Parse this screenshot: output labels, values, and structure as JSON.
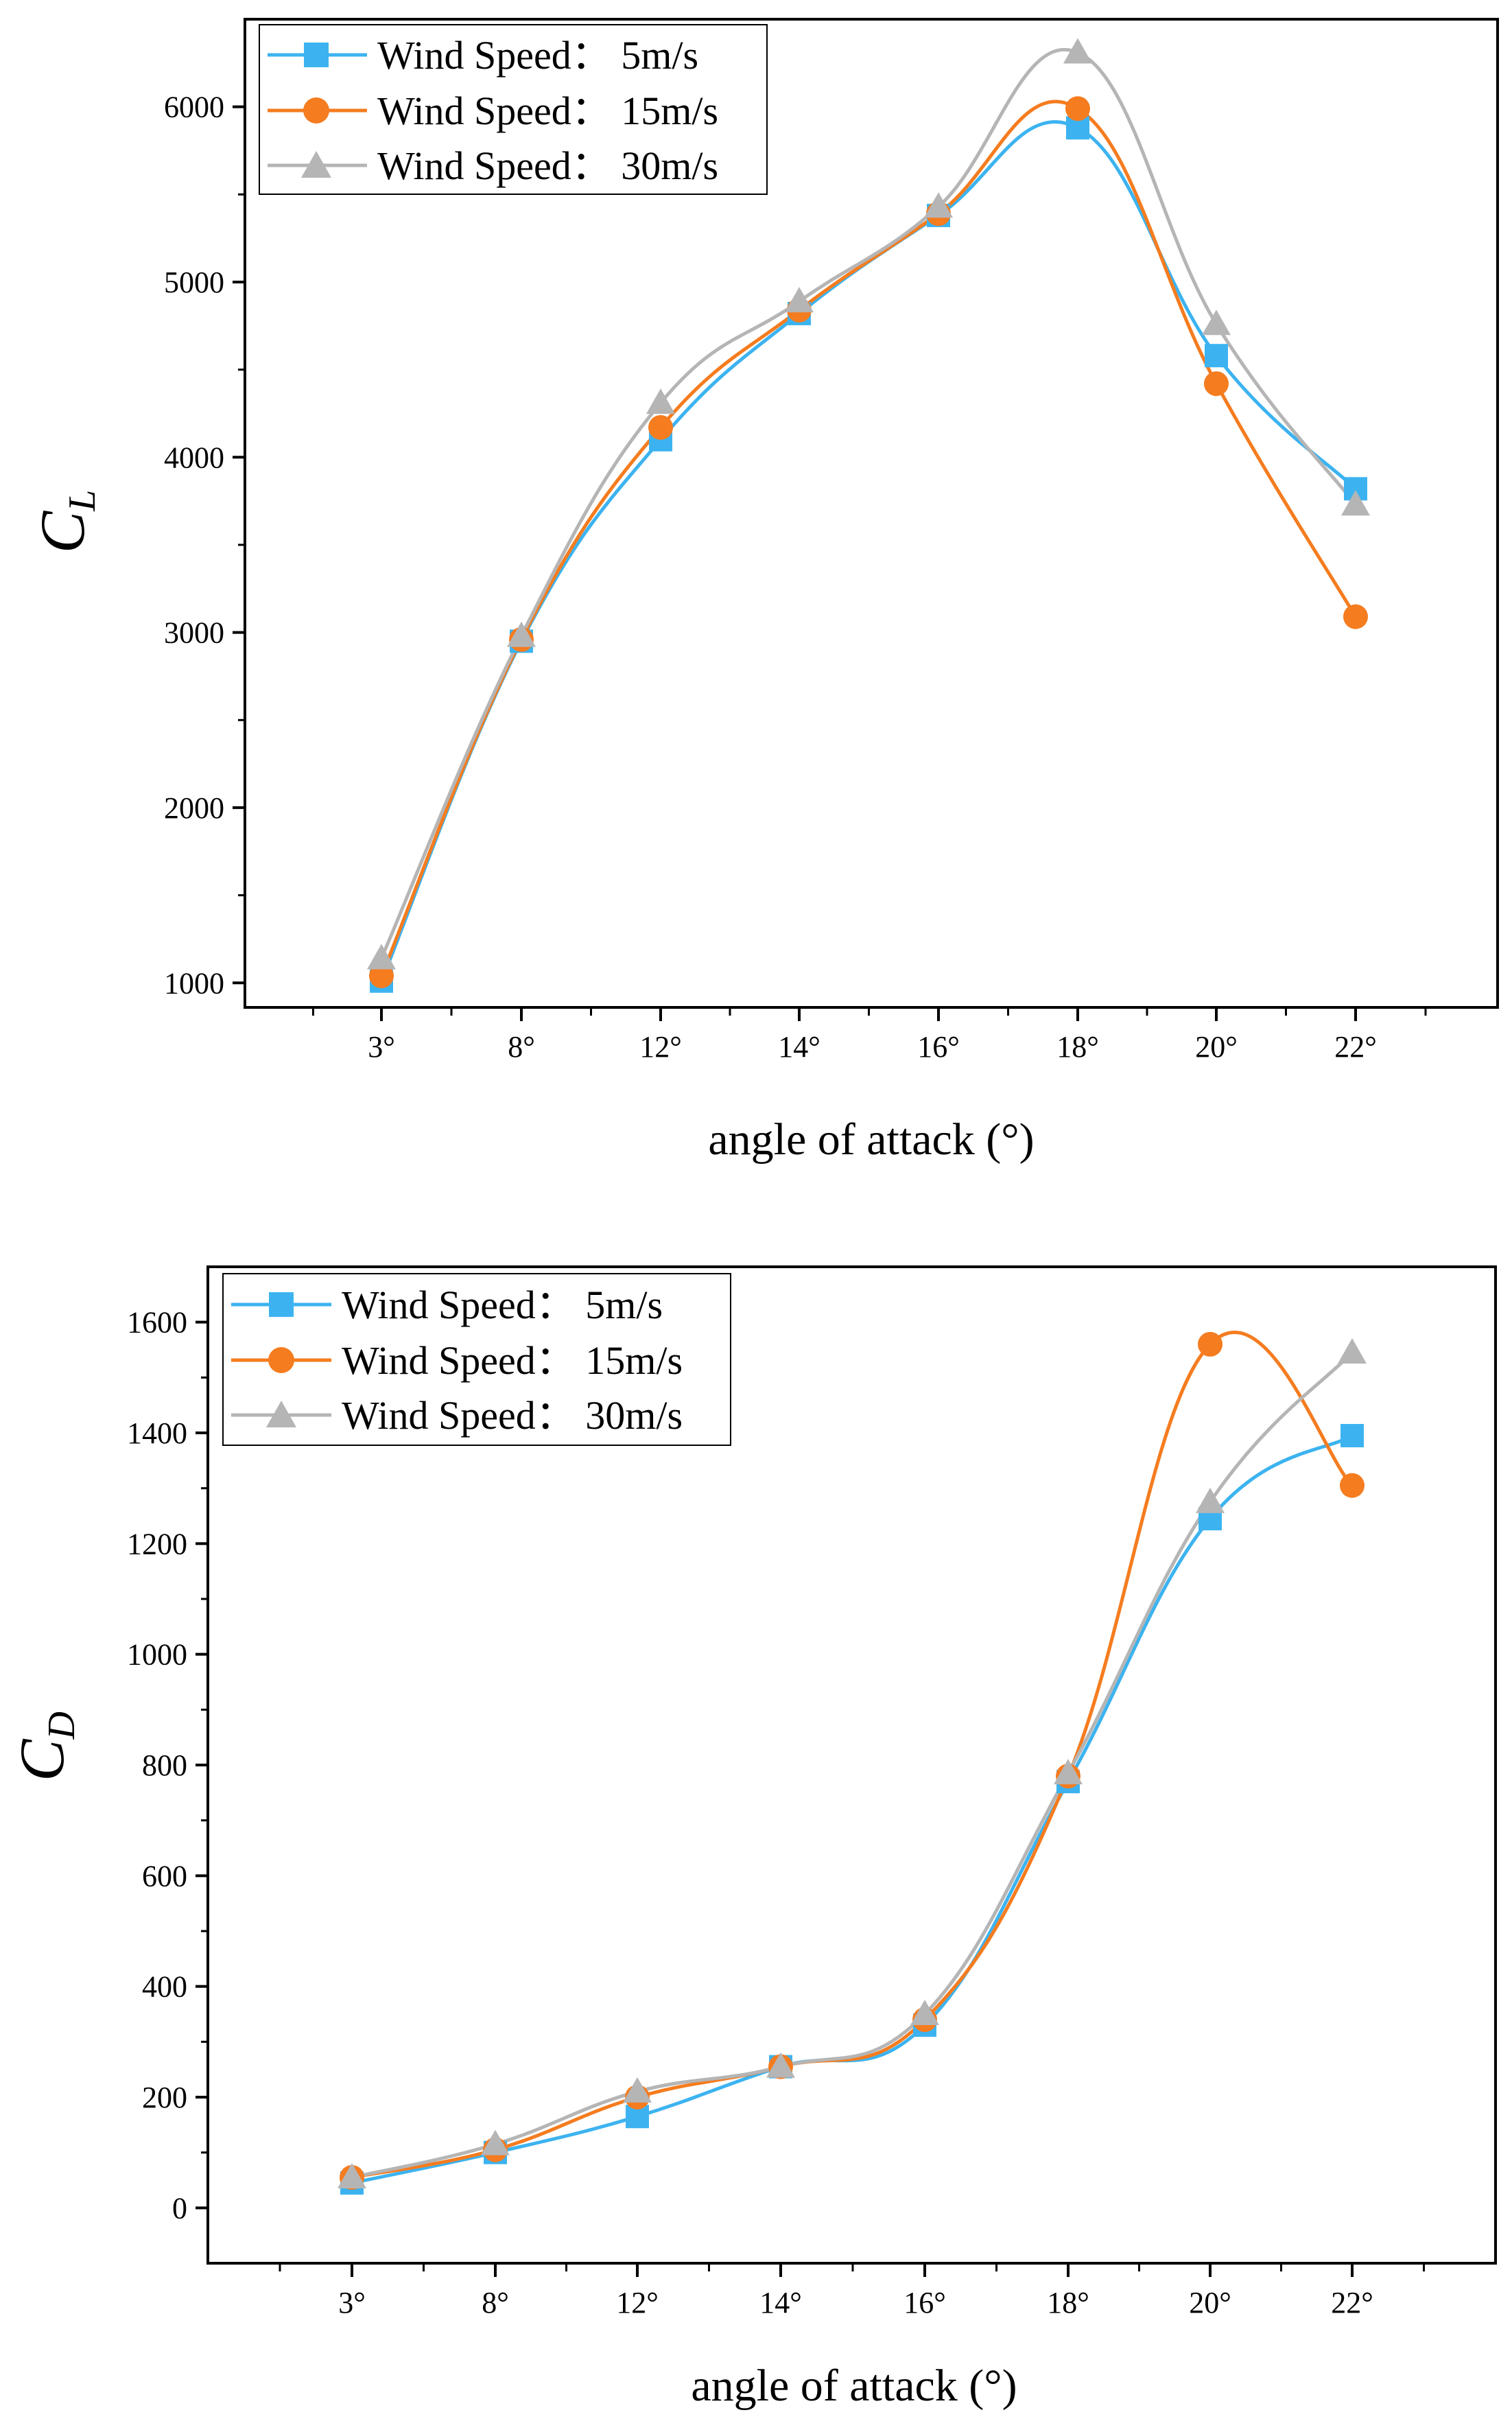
{
  "chart_data": [
    {
      "type": "line",
      "xlabel": "angle of attack (°)",
      "ylabel": {
        "main": "C",
        "sub": "L"
      },
      "categories": [
        "3°",
        "8°",
        "12°",
        "14°",
        "16°",
        "18°",
        "20°",
        "22°"
      ],
      "ylim": [
        860,
        6500
      ],
      "yticks": [
        1000,
        2000,
        3000,
        4000,
        5000,
        6000
      ],
      "grid": false,
      "legend_position": "top-left",
      "series": [
        {
          "name": "Wind Speed：  5m/s",
          "color": "#3cb3f0",
          "marker": "square",
          "values": [
            1010,
            2950,
            4100,
            4820,
            5380,
            5880,
            4580,
            3820
          ]
        },
        {
          "name": "Wind Speed：  15m/s",
          "color": "#f57c1f",
          "marker": "circle",
          "values": [
            1040,
            2960,
            4170,
            4840,
            5390,
            5990,
            4420,
            3090
          ]
        },
        {
          "name": "Wind Speed：  30m/s",
          "color": "#b5b5b5",
          "marker": "triangle",
          "values": [
            1140,
            2980,
            4310,
            4890,
            5430,
            6310,
            4760,
            3730
          ]
        }
      ]
    },
    {
      "type": "line",
      "xlabel": "angle of attack (°)",
      "ylabel": {
        "main": "C",
        "sub": "D"
      },
      "categories": [
        "3°",
        "8°",
        "12°",
        "14°",
        "16°",
        "18°",
        "20°",
        "22°"
      ],
      "ylim": [
        -100,
        1700
      ],
      "yticks": [
        0,
        200,
        400,
        600,
        800,
        1000,
        1200,
        1400,
        1600
      ],
      "grid": false,
      "legend_position": "top-left",
      "series": [
        {
          "name": "Wind Speed：  5m/s",
          "color": "#3cb3f0",
          "marker": "square",
          "values": [
            45,
            100,
            165,
            255,
            330,
            770,
            1245,
            1395
          ]
        },
        {
          "name": "Wind Speed：  15m/s",
          "color": "#f57c1f",
          "marker": "circle",
          "values": [
            55,
            105,
            200,
            255,
            340,
            780,
            1560,
            1305
          ]
        },
        {
          "name": "Wind Speed：  30m/s",
          "color": "#b5b5b5",
          "marker": "triangle",
          "values": [
            55,
            115,
            210,
            255,
            350,
            785,
            1275,
            1545
          ]
        }
      ]
    }
  ]
}
